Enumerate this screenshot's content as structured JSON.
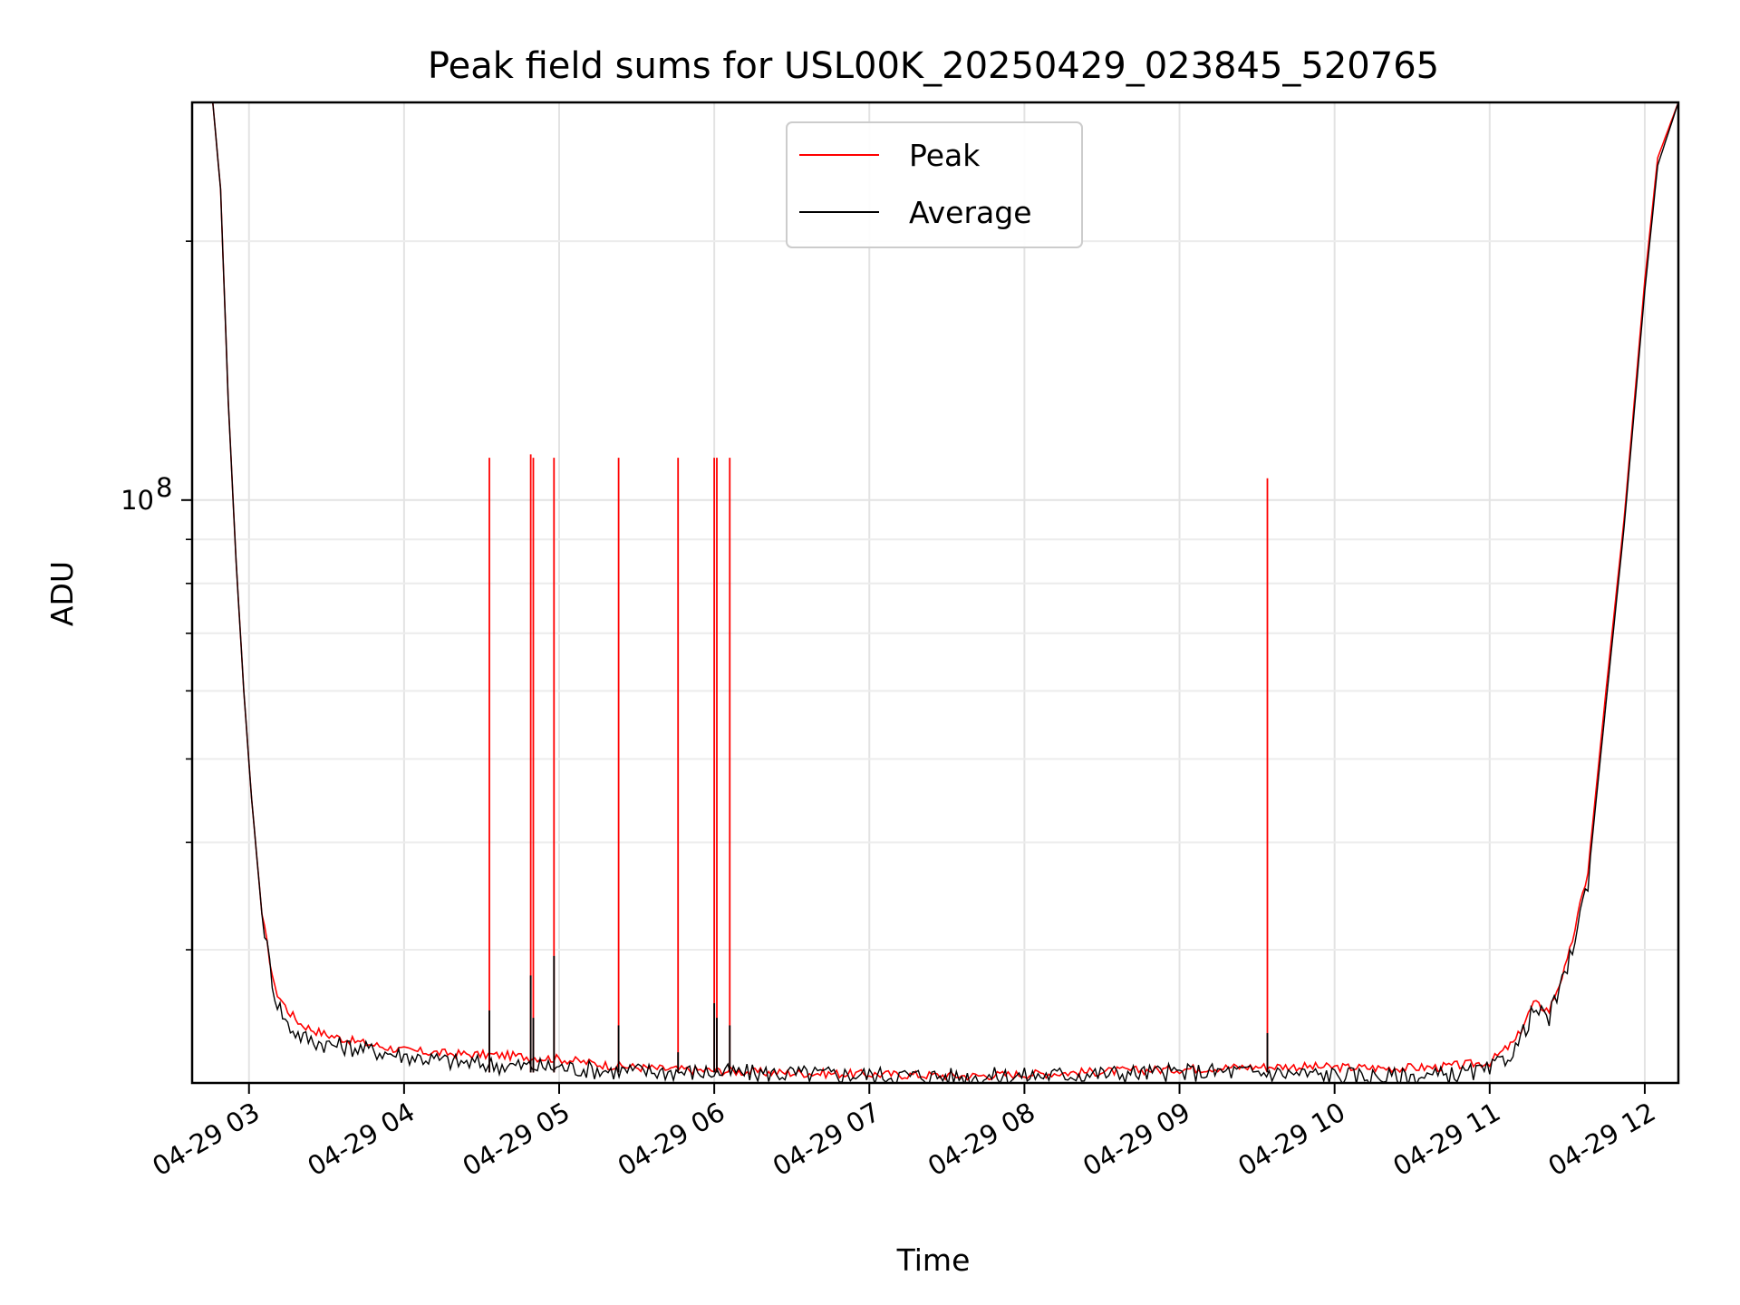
{
  "chart_data": {
    "type": "line",
    "title": "Peak field sums for USL00K_20250429_023845_520765",
    "xlabel": "Time",
    "ylabel": "ADU",
    "yscale": "log",
    "ylim": [
      21000000,
      290000000
    ],
    "xlim": [
      "2025-04-29 02:38",
      "2025-04-29 12:13"
    ],
    "grid": true,
    "legend_position": "top-center",
    "x_ticks": [
      {
        "t": "2025-04-29 03:00",
        "label": "04-29 03"
      },
      {
        "t": "2025-04-29 04:00",
        "label": "04-29 04"
      },
      {
        "t": "2025-04-29 05:00",
        "label": "04-29 05"
      },
      {
        "t": "2025-04-29 06:00",
        "label": "04-29 06"
      },
      {
        "t": "2025-04-29 07:00",
        "label": "04-29 07"
      },
      {
        "t": "2025-04-29 08:00",
        "label": "04-29 08"
      },
      {
        "t": "2025-04-29 09:00",
        "label": "04-29 09"
      },
      {
        "t": "2025-04-29 10:00",
        "label": "04-29 10"
      },
      {
        "t": "2025-04-29 11:00",
        "label": "04-29 11"
      },
      {
        "t": "2025-04-29 12:00",
        "label": "04-29 12"
      }
    ],
    "y_ticks": [
      {
        "value": 100000000,
        "label": "10",
        "exponent": "8"
      }
    ],
    "y_minor_ticks": [
      30000000,
      40000000,
      50000000,
      60000000,
      70000000,
      80000000,
      90000000,
      200000000
    ],
    "series": [
      {
        "name": "Peak",
        "color": "#ff0000",
        "x": [
          "2025-04-29 02:38",
          "2025-04-29 02:46",
          "2025-04-29 02:49",
          "2025-04-29 02:52",
          "2025-04-29 02:55",
          "2025-04-29 02:58",
          "2025-04-29 03:01",
          "2025-04-29 03:05",
          "2025-04-29 03:10",
          "2025-04-29 03:15",
          "2025-04-29 03:20",
          "2025-04-29 03:25",
          "2025-04-29 03:30",
          "2025-04-29 03:40",
          "2025-04-29 04:00",
          "2025-04-29 04:20",
          "2025-04-29 04:40",
          "2025-04-29 05:00",
          "2025-04-29 05:20",
          "2025-04-29 05:40",
          "2025-04-29 06:00",
          "2025-04-29 06:20",
          "2025-04-29 06:40",
          "2025-04-29 07:00",
          "2025-04-29 07:20",
          "2025-04-29 07:40",
          "2025-04-29 08:00",
          "2025-04-29 08:20",
          "2025-04-29 08:40",
          "2025-04-29 09:00",
          "2025-04-29 09:20",
          "2025-04-29 09:40",
          "2025-04-29 10:00",
          "2025-04-29 10:20",
          "2025-04-29 10:40",
          "2025-04-29 11:00",
          "2025-04-29 11:10",
          "2025-04-29 11:17",
          "2025-04-29 11:23",
          "2025-04-29 11:30",
          "2025-04-29 11:38",
          "2025-04-29 11:45",
          "2025-04-29 11:52",
          "2025-04-29 12:00",
          "2025-04-29 12:05",
          "2025-04-29 12:13"
        ],
        "y": [
          290000000,
          290000000,
          230000000,
          130000000,
          85000000,
          60000000,
          45000000,
          33000000,
          27000000,
          25500000,
          24600000,
          24200000,
          23900000,
          23500000,
          22900000,
          22700000,
          22600000,
          22400000,
          22000000,
          21800000,
          21700000,
          21600000,
          21550000,
          21500000,
          21450000,
          21400000,
          21500000,
          21600000,
          21700000,
          21800000,
          21900000,
          21950000,
          21900000,
          21850000,
          21900000,
          22200000,
          23500000,
          26000000,
          25500000,
          29000000,
          37000000,
          60000000,
          95000000,
          180000000,
          250000000,
          290000000
        ]
      },
      {
        "name": "Average",
        "color": "#000000",
        "x": [
          "2025-04-29 02:38",
          "2025-04-29 02:46",
          "2025-04-29 02:49",
          "2025-04-29 02:52",
          "2025-04-29 02:55",
          "2025-04-29 02:58",
          "2025-04-29 03:01",
          "2025-04-29 03:05",
          "2025-04-29 03:10",
          "2025-04-29 03:15",
          "2025-04-29 03:20",
          "2025-04-29 03:25",
          "2025-04-29 03:30",
          "2025-04-29 03:40",
          "2025-04-29 04:00",
          "2025-04-29 04:20",
          "2025-04-29 04:40",
          "2025-04-29 05:00",
          "2025-04-29 05:20",
          "2025-04-29 05:40",
          "2025-04-29 06:00",
          "2025-04-29 06:20",
          "2025-04-29 06:40",
          "2025-04-29 07:00",
          "2025-04-29 07:20",
          "2025-04-29 07:40",
          "2025-04-29 08:00",
          "2025-04-29 08:20",
          "2025-04-29 08:40",
          "2025-04-29 09:00",
          "2025-04-29 09:20",
          "2025-04-29 09:40",
          "2025-04-29 10:00",
          "2025-04-29 10:20",
          "2025-04-29 10:40",
          "2025-04-29 11:00",
          "2025-04-29 11:10",
          "2025-04-29 11:17",
          "2025-04-29 11:23",
          "2025-04-29 11:30",
          "2025-04-29 11:38",
          "2025-04-29 11:45",
          "2025-04-29 11:52",
          "2025-04-29 12:00",
          "2025-04-29 12:05",
          "2025-04-29 12:13"
        ],
        "y": [
          290000000,
          290000000,
          230000000,
          130000000,
          85000000,
          60000000,
          45000000,
          33000000,
          26500000,
          24500000,
          23800000,
          23500000,
          23300000,
          23100000,
          22600000,
          22200000,
          22000000,
          21900000,
          21700000,
          21650000,
          21600000,
          21550000,
          21500000,
          21450000,
          21400000,
          21350000,
          21400000,
          21500000,
          21550000,
          21600000,
          21650000,
          21550000,
          21450000,
          21350000,
          21400000,
          21700000,
          23000000,
          25500000,
          25000000,
          28500000,
          36000000,
          58000000,
          93000000,
          175000000,
          245000000,
          290000000
        ]
      }
    ],
    "peak_spikes": [
      {
        "t": "2025-04-29 04:33",
        "peak": 112000000,
        "average": 25500000
      },
      {
        "t": "2025-04-29 04:49",
        "peak": 113000000,
        "average": 28000000
      },
      {
        "t": "2025-04-29 04:50",
        "peak": 112000000,
        "average": 25000000
      },
      {
        "t": "2025-04-29 04:58",
        "peak": 112000000,
        "average": 29500000
      },
      {
        "t": "2025-04-29 05:23",
        "peak": 112000000,
        "average": 24500000
      },
      {
        "t": "2025-04-29 05:46",
        "peak": 112000000,
        "average": 22800000
      },
      {
        "t": "2025-04-29 06:00",
        "peak": 112000000,
        "average": 26000000
      },
      {
        "t": "2025-04-29 06:01",
        "peak": 112000000,
        "average": 25000000
      },
      {
        "t": "2025-04-29 06:06",
        "peak": 112000000,
        "average": 24500000
      },
      {
        "t": "2025-04-29 09:34",
        "peak": 106000000,
        "average": 24000000
      }
    ]
  },
  "legend": {
    "items": [
      {
        "label": "Peak",
        "color": "#ff0000"
      },
      {
        "label": "Average",
        "color": "#000000"
      }
    ]
  }
}
